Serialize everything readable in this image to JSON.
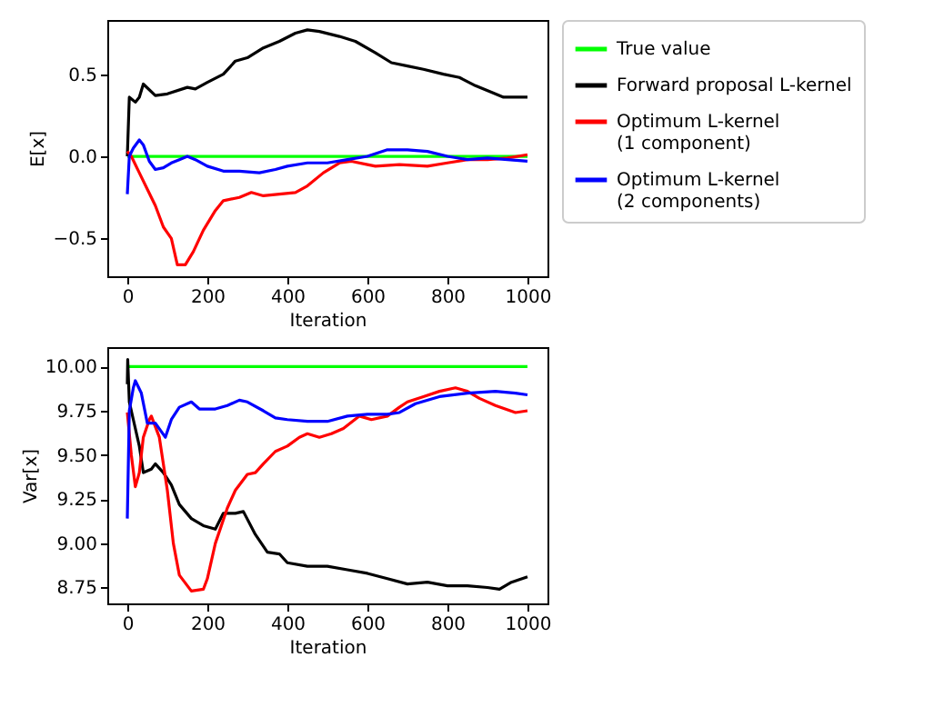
{
  "chart_data": [
    {
      "type": "line",
      "xlabel": "Iteration",
      "ylabel": "E[x]",
      "xlim": [
        -50,
        1050
      ],
      "ylim": [
        -0.73,
        0.83
      ],
      "xticks": [
        0,
        200,
        400,
        600,
        800,
        1000
      ],
      "yticks": [
        {
          "value": -0.5,
          "label": "−0.5"
        },
        {
          "value": 0,
          "label": "0.0"
        },
        {
          "value": 0.5,
          "label": "0.5"
        }
      ],
      "legend": "right",
      "series": [
        {
          "name": "True value",
          "color": "#00ff00",
          "x": [
            0,
            1000
          ],
          "values": [
            0,
            0
          ]
        },
        {
          "name": "Forward proposal L-kernel",
          "color": "#000000",
          "x": [
            0,
            5,
            20,
            30,
            40,
            70,
            100,
            150,
            170,
            200,
            240,
            270,
            300,
            340,
            380,
            420,
            450,
            480,
            530,
            570,
            620,
            660,
            700,
            740,
            790,
            830,
            870,
            910,
            940,
            1000
          ],
          "values": [
            0,
            0.36,
            0.33,
            0.36,
            0.44,
            0.37,
            0.38,
            0.42,
            0.41,
            0.45,
            0.5,
            0.58,
            0.6,
            0.66,
            0.7,
            0.75,
            0.77,
            0.76,
            0.73,
            0.7,
            0.63,
            0.57,
            0.55,
            0.53,
            0.5,
            0.48,
            0.43,
            0.39,
            0.36,
            0.36
          ]
        },
        {
          "name": "Optimum L-kernel\n (1 component)",
          "color": "#ff0000",
          "x": [
            0,
            10,
            30,
            50,
            70,
            90,
            110,
            125,
            145,
            165,
            190,
            220,
            240,
            280,
            310,
            340,
            380,
            420,
            450,
            490,
            530,
            560,
            600,
            620,
            680,
            750,
            800,
            850,
            900,
            950,
            1000
          ],
          "values": [
            0.03,
            0,
            -0.1,
            -0.2,
            -0.3,
            -0.43,
            -0.5,
            -0.66,
            -0.66,
            -0.58,
            -0.45,
            -0.33,
            -0.27,
            -0.25,
            -0.22,
            -0.24,
            -0.23,
            -0.22,
            -0.18,
            -0.1,
            -0.04,
            -0.03,
            -0.05,
            -0.06,
            -0.05,
            -0.06,
            -0.04,
            -0.02,
            -0.02,
            -0.01,
            0.01
          ]
        },
        {
          "name": "Optimum L-kernel\n (2 components)",
          "color": "#0000ff",
          "x": [
            0,
            5,
            15,
            30,
            40,
            55,
            70,
            90,
            110,
            130,
            150,
            170,
            200,
            240,
            280,
            330,
            370,
            400,
            450,
            500,
            550,
            600,
            650,
            700,
            750,
            800,
            850,
            900,
            950,
            1000
          ],
          "values": [
            -0.23,
            0,
            0.05,
            0.1,
            0.07,
            -0.03,
            -0.08,
            -0.07,
            -0.04,
            -0.02,
            0,
            -0.02,
            -0.06,
            -0.09,
            -0.09,
            -0.1,
            -0.08,
            -0.06,
            -0.04,
            -0.04,
            -0.02,
            0,
            0.04,
            0.04,
            0.03,
            0,
            -0.02,
            -0.01,
            -0.02,
            -0.03
          ]
        }
      ]
    },
    {
      "type": "line",
      "xlabel": "Iteration",
      "ylabel": "Var[x]",
      "xlim": [
        -50,
        1050
      ],
      "ylim": [
        8.66,
        10.11
      ],
      "xticks": [
        0,
        200,
        400,
        600,
        800,
        1000
      ],
      "yticks": [
        {
          "value": 8.75,
          "label": "8.75"
        },
        {
          "value": 9,
          "label": "9.00"
        },
        {
          "value": 9.25,
          "label": "9.25"
        },
        {
          "value": 9.5,
          "label": "9.50"
        },
        {
          "value": 9.75,
          "label": "9.75"
        },
        {
          "value": 10,
          "label": "10.00"
        }
      ],
      "series": [
        {
          "color": "#00ff00",
          "x": [
            0,
            1000
          ],
          "values": [
            10,
            10
          ]
        },
        {
          "color": "#000000",
          "x": [
            0,
            1,
            5,
            15,
            30,
            40,
            60,
            70,
            90,
            110,
            130,
            160,
            190,
            220,
            240,
            270,
            290,
            320,
            350,
            380,
            400,
            450,
            500,
            550,
            600,
            650,
            700,
            750,
            800,
            850,
            900,
            930,
            960,
            1000
          ],
          "values": [
            9.9,
            10.04,
            9.8,
            9.7,
            9.55,
            9.4,
            9.42,
            9.45,
            9.4,
            9.33,
            9.22,
            9.14,
            9.1,
            9.08,
            9.17,
            9.17,
            9.18,
            9.05,
            8.95,
            8.94,
            8.89,
            8.87,
            8.87,
            8.85,
            8.83,
            8.8,
            8.77,
            8.78,
            8.76,
            8.76,
            8.75,
            8.74,
            8.78,
            8.81
          ]
        },
        {
          "color": "#ff0000",
          "x": [
            0,
            10,
            20,
            30,
            40,
            55,
            60,
            80,
            100,
            115,
            130,
            160,
            190,
            200,
            220,
            250,
            270,
            300,
            320,
            340,
            370,
            400,
            430,
            450,
            480,
            510,
            540,
            580,
            610,
            650,
            680,
            700,
            740,
            780,
            820,
            850,
            880,
            920,
            970,
            1000
          ],
          "values": [
            9.74,
            9.5,
            9.32,
            9.4,
            9.6,
            9.7,
            9.72,
            9.6,
            9.3,
            9,
            8.82,
            8.73,
            8.74,
            8.8,
            9,
            9.2,
            9.3,
            9.39,
            9.4,
            9.45,
            9.52,
            9.55,
            9.6,
            9.62,
            9.6,
            9.62,
            9.65,
            9.72,
            9.7,
            9.72,
            9.77,
            9.8,
            9.83,
            9.86,
            9.88,
            9.86,
            9.82,
            9.78,
            9.74,
            9.75
          ]
        },
        {
          "color": "#0000ff",
          "x": [
            0,
            5,
            15,
            20,
            35,
            50,
            70,
            95,
            110,
            130,
            160,
            180,
            220,
            250,
            280,
            300,
            340,
            370,
            400,
            450,
            500,
            550,
            600,
            650,
            680,
            720,
            780,
            850,
            920,
            970,
            1000
          ],
          "values": [
            9.14,
            9.75,
            9.88,
            9.92,
            9.85,
            9.68,
            9.68,
            9.6,
            9.7,
            9.77,
            9.8,
            9.76,
            9.76,
            9.78,
            9.81,
            9.8,
            9.75,
            9.71,
            9.7,
            9.69,
            9.69,
            9.72,
            9.73,
            9.73,
            9.74,
            9.79,
            9.83,
            9.85,
            9.86,
            9.85,
            9.84
          ]
        }
      ]
    }
  ]
}
